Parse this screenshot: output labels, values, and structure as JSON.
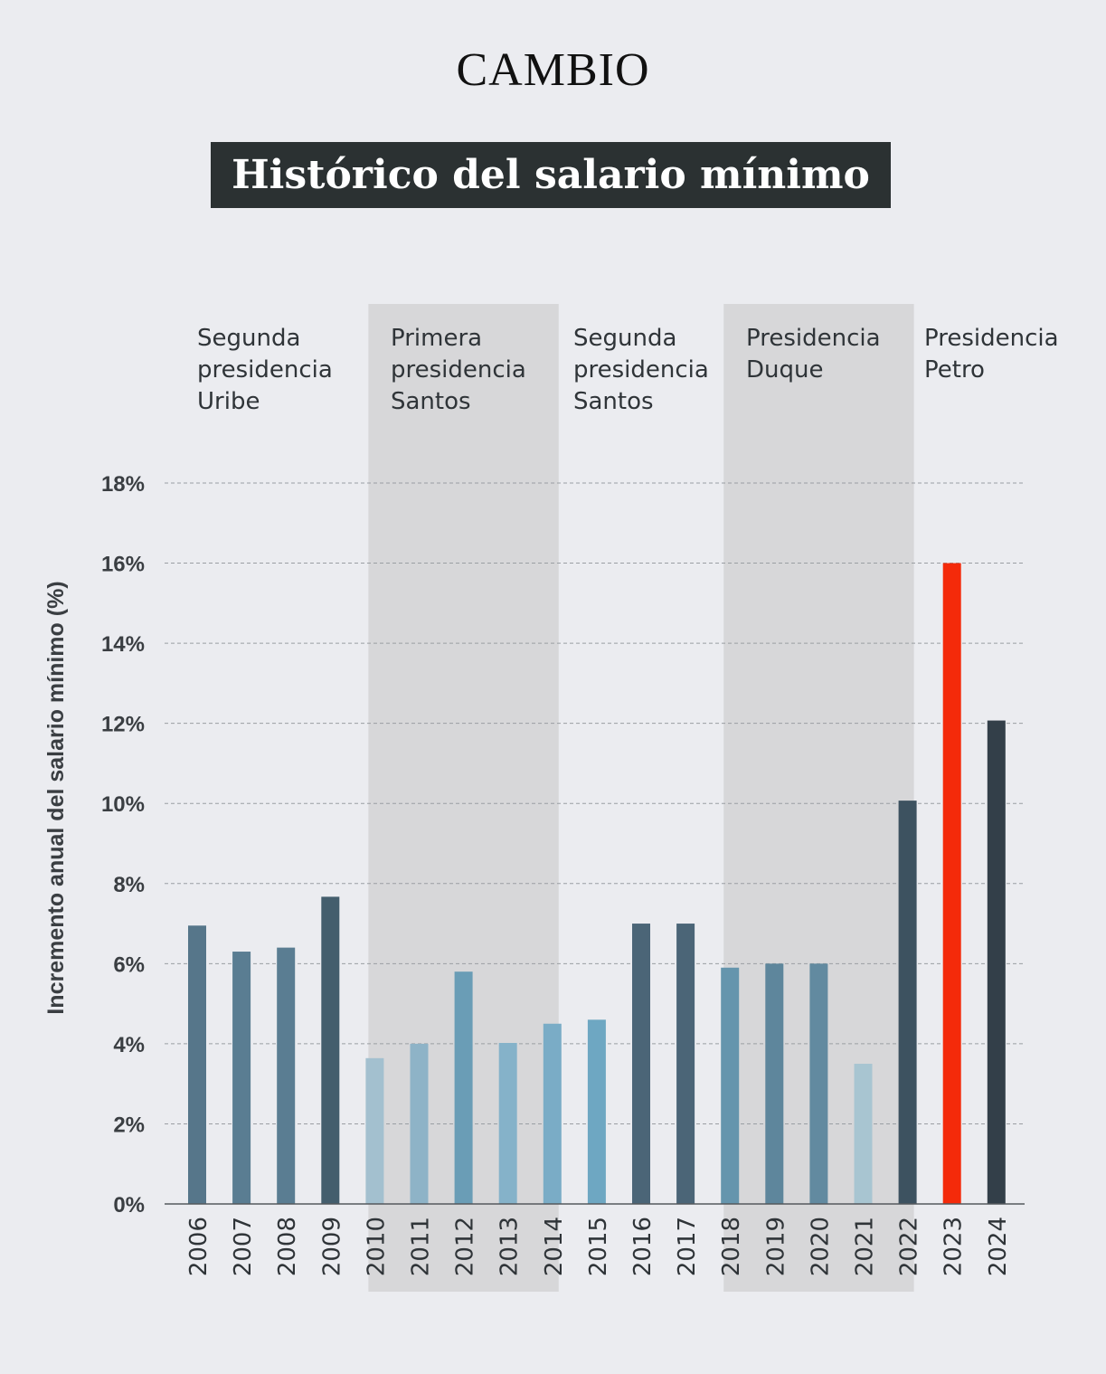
{
  "brand": "CAMBIO",
  "chart_data": {
    "type": "bar",
    "title": "Histórico del salario mínimo",
    "ylabel": "Incremento anual del salario mínimo (%)",
    "xlabel": "",
    "ylim": [
      0,
      18
    ],
    "yticks": [
      0,
      2,
      4,
      6,
      8,
      10,
      12,
      14,
      16,
      18
    ],
    "ytick_suffix": "%",
    "grid": true,
    "categories": [
      "2006",
      "2007",
      "2008",
      "2009",
      "2010",
      "2011",
      "2012",
      "2013",
      "2014",
      "2015",
      "2016",
      "2017",
      "2018",
      "2019",
      "2020",
      "2021",
      "2022",
      "2023",
      "2024"
    ],
    "values": [
      6.95,
      6.3,
      6.4,
      7.67,
      3.64,
      4.0,
      5.8,
      4.02,
      4.5,
      4.6,
      7.0,
      7.0,
      5.9,
      6.0,
      6.0,
      3.5,
      10.07,
      16.0,
      12.07
    ],
    "bar_colors": [
      "#56768a",
      "#5a7d92",
      "#5a7d92",
      "#445e6d",
      "#a3c0cf",
      "#8eb3c7",
      "#6a9db6",
      "#85b2c9",
      "#7aacc6",
      "#6ea7c2",
      "#4b6577",
      "#4b6577",
      "#6595ad",
      "#5e869c",
      "#628aa0",
      "#a8c5d1",
      "#3d5260",
      "#f42a0a",
      "#333f49"
    ],
    "periods": [
      {
        "label": [
          "Segunda",
          "presidencia",
          "Uribe"
        ],
        "from": "2006",
        "to": "2009",
        "shaded": false
      },
      {
        "label": [
          "Primera",
          "presidencia",
          "Santos"
        ],
        "from": "2010",
        "to": "2014",
        "shaded": true
      },
      {
        "label": [
          "Segunda",
          "presidencia",
          "Santos"
        ],
        "from": "2014",
        "to": "2018",
        "shaded": false
      },
      {
        "label": [
          "Presidencia",
          "Duque"
        ],
        "from": "2018",
        "to": "2022",
        "shaded": true
      },
      {
        "label": [
          "Presidencia",
          "Petro"
        ],
        "from": "2022",
        "to": "2024",
        "shaded": false
      }
    ],
    "shade_color": "#d7d7d9"
  }
}
